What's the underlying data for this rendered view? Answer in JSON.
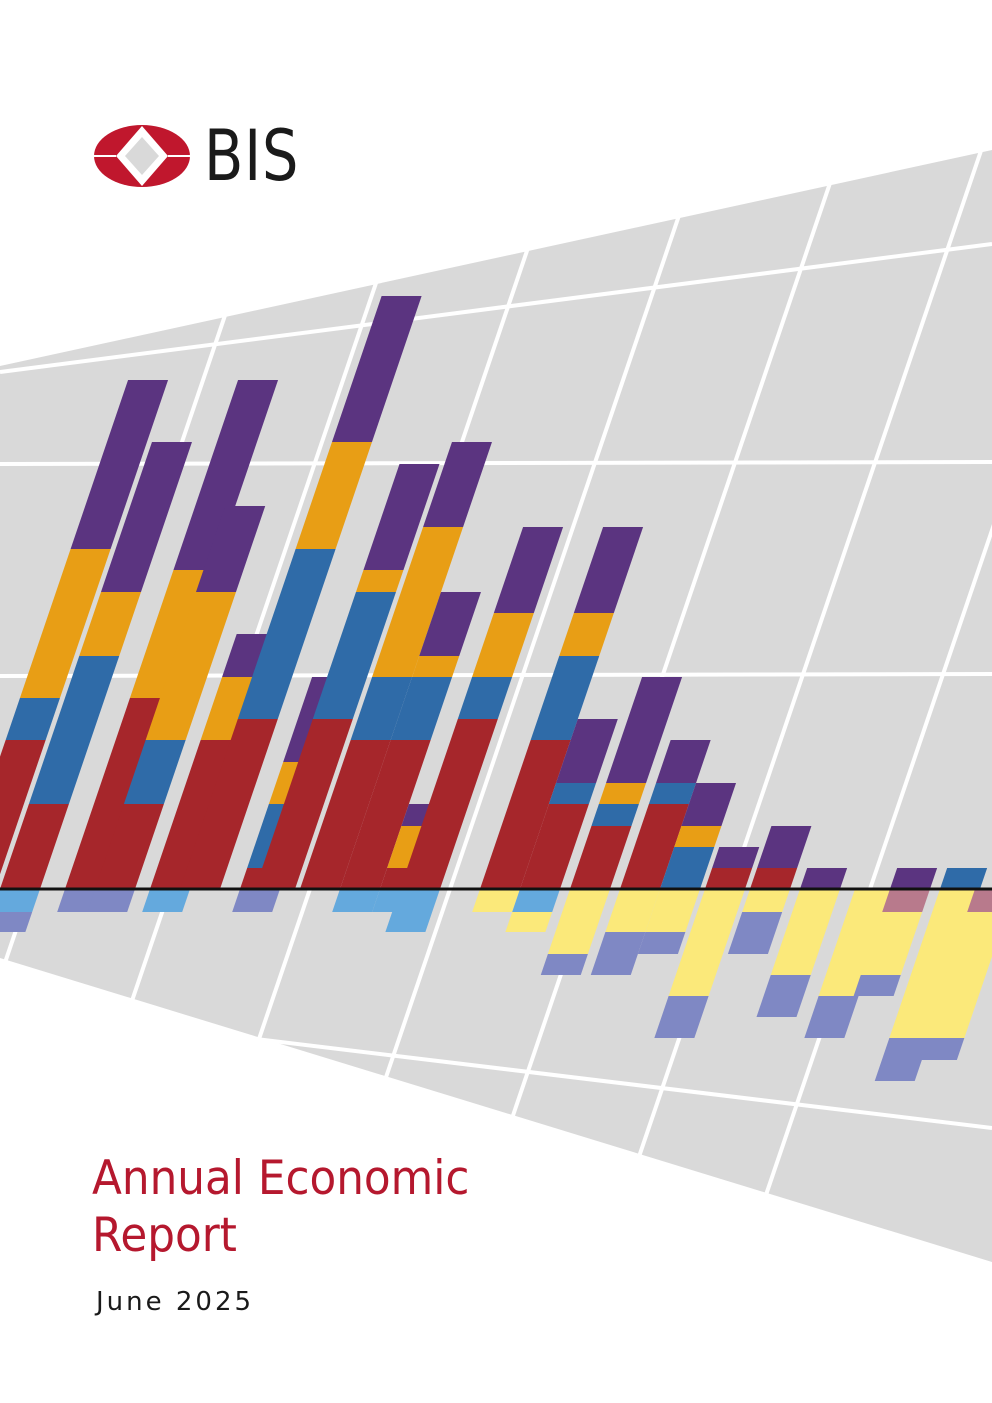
{
  "brand": {
    "name": "BIS",
    "logo_colors": {
      "primary": "#c0172d",
      "accent": "#ffffff"
    }
  },
  "title": {
    "line1": "Annual Economic",
    "line2": "Report",
    "color": "#b5182e"
  },
  "date": "June 2025",
  "cover_art": {
    "palette": {
      "panel": "#d9d9d9",
      "grid": "#ffffff",
      "baseline": "#111111",
      "red": "#a6262b",
      "blue": "#2f6ba8",
      "orange": "#e89e15",
      "purple": "#5b3480",
      "light_blue": "#64a9dd",
      "lavender": "#7f88c4",
      "yellow": "#fbe97a",
      "mauve": "#b87a8c"
    }
  }
}
